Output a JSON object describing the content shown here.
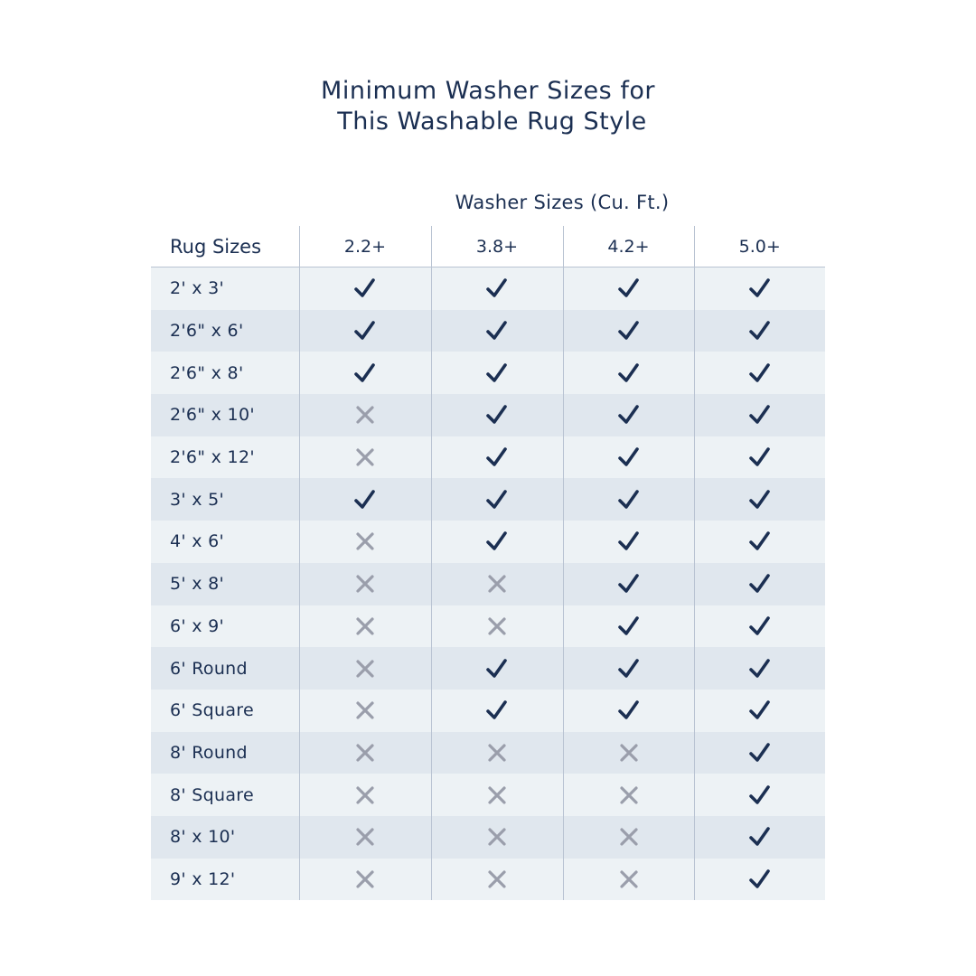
{
  "title": {
    "line1": "Minimum Washer Sizes for",
    "line2": " This Washable Rug Style"
  },
  "column_group_label": "Washer Sizes (Cu. Ft.)",
  "row_header_label": "Rug Sizes",
  "columns": [
    "2.2+",
    "3.8+",
    "4.2+",
    "5.0+"
  ],
  "colors": {
    "text": "#1b2f52",
    "check": "#1b2f52",
    "cross": "#9a9eab",
    "row_light": "#edf2f5",
    "row_dark": "#e0e7ee"
  },
  "icons": {
    "yes": "check-icon",
    "no": "x-icon"
  },
  "rows": [
    {
      "size": "2' x 3'",
      "fits": [
        true,
        true,
        true,
        true
      ]
    },
    {
      "size": "2'6\" x 6'",
      "fits": [
        true,
        true,
        true,
        true
      ]
    },
    {
      "size": "2'6\" x 8'",
      "fits": [
        true,
        true,
        true,
        true
      ]
    },
    {
      "size": "2'6\" x 10'",
      "fits": [
        false,
        true,
        true,
        true
      ]
    },
    {
      "size": "2'6\" x 12'",
      "fits": [
        false,
        true,
        true,
        true
      ]
    },
    {
      "size": "3' x 5'",
      "fits": [
        true,
        true,
        true,
        true
      ]
    },
    {
      "size": "4' x 6'",
      "fits": [
        false,
        true,
        true,
        true
      ]
    },
    {
      "size": "5' x 8'",
      "fits": [
        false,
        false,
        true,
        true
      ]
    },
    {
      "size": "6' x 9'",
      "fits": [
        false,
        false,
        true,
        true
      ]
    },
    {
      "size": "6' Round",
      "fits": [
        false,
        true,
        true,
        true
      ]
    },
    {
      "size": "6' Square",
      "fits": [
        false,
        true,
        true,
        true
      ]
    },
    {
      "size": "8' Round",
      "fits": [
        false,
        false,
        false,
        true
      ]
    },
    {
      "size": "8' Square",
      "fits": [
        false,
        false,
        false,
        true
      ]
    },
    {
      "size": "8' x 10'",
      "fits": [
        false,
        false,
        false,
        true
      ]
    },
    {
      "size": "9' x 12'",
      "fits": [
        false,
        false,
        false,
        true
      ]
    }
  ]
}
